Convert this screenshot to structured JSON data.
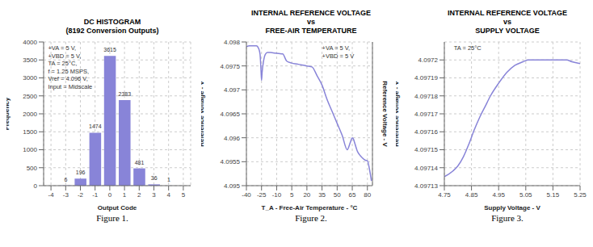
{
  "chart_data": [
    {
      "type": "bar",
      "title": "DC HISTOGRAM\n(8192 Conversion Outputs)",
      "x_label": "Output Code",
      "y_label": "Frequency",
      "x": [
        -4,
        -3,
        -2,
        -1,
        0,
        1,
        2,
        3,
        4,
        5
      ],
      "values": [
        0,
        6,
        196,
        1474,
        3615,
        2383,
        481,
        36,
        1,
        0
      ],
      "xlim": [
        -4.5,
        5.5
      ],
      "xticks": [
        -4,
        -3,
        -2,
        -1,
        0,
        1,
        2,
        3,
        4,
        5
      ],
      "ylim": [
        0,
        4000
      ],
      "yticks": [
        0,
        500,
        1000,
        1500,
        2000,
        2500,
        3000,
        3500,
        4000
      ],
      "grid": true,
      "data_labels": true,
      "annotation": "+VA = 5 V,\n+VBD = 5 V,\nTA = 25°C,\nf = 1.25 MSPS,\nVref = 4.096 V,\nInput = Midscale",
      "caption": "Figure 1."
    },
    {
      "type": "line",
      "title": "INTERNAL REFERENCE VOLTAGE\nvs\nFREE-AIR TEMPERATURE",
      "x_label": "T_A - Free-Air Temperature - °C",
      "y_label": "Reference Voltage - V",
      "y2_label": "Reference Voltage - V",
      "x": [
        -40,
        -37,
        -35,
        -30,
        -28,
        -26.5,
        -25.5,
        -25,
        -24.5,
        -23,
        -21,
        -19,
        -16,
        -12,
        -8,
        -4,
        0,
        5,
        10,
        15,
        20,
        25,
        30,
        35,
        40,
        45,
        50,
        55,
        60,
        63,
        65,
        66,
        67,
        68,
        70,
        72,
        75,
        78,
        80,
        82,
        84
      ],
      "values": [
        4.0979,
        4.09792,
        4.09792,
        4.09792,
        4.09787,
        4.09775,
        4.0974,
        4.0972,
        4.09735,
        4.0976,
        4.09775,
        4.09778,
        4.09778,
        4.09777,
        4.09776,
        4.09775,
        4.0976,
        4.09756,
        4.09754,
        4.09752,
        4.0975,
        4.09748,
        4.0973,
        4.0971,
        4.0968,
        4.09655,
        4.0963,
        4.09605,
        4.09575,
        4.0959,
        4.096,
        4.09598,
        4.09592,
        4.09585,
        4.09572,
        4.09565,
        4.09558,
        4.09553,
        4.09552,
        4.09535,
        4.0951
      ],
      "xlim": [
        -40,
        85
      ],
      "xticks": [
        -40,
        -25,
        -10,
        5,
        20,
        35,
        50,
        65,
        80
      ],
      "ylim": [
        4.095,
        4.098
      ],
      "yticks": [
        4.095,
        4.0955,
        4.096,
        4.0965,
        4.097,
        4.0975,
        4.098
      ],
      "grid": true,
      "annotation": "+VA = 5 V,\n+VBD = 5 V",
      "caption": "Figure 2."
    },
    {
      "type": "line",
      "title": "INTERNAL REFERENCE VOLTAGE\nvs\nSUPPLY VOLTAGE",
      "x_label": "Supply Voltage - V",
      "y_label": "Reference Voltage - V",
      "x": [
        4.75,
        4.78,
        4.8,
        4.82,
        4.84,
        4.86,
        4.88,
        4.9,
        4.92,
        4.95,
        4.98,
        5.01,
        5.04,
        5.06,
        5.08,
        5.1,
        5.12,
        5.15,
        5.18,
        5.2,
        5.22,
        5.25
      ],
      "values": [
        4.097135,
        4.097138,
        4.097141,
        4.097146,
        4.097153,
        4.097161,
        4.097168,
        4.097174,
        4.09718,
        4.097187,
        4.097193,
        4.097197,
        4.097199,
        4.0972,
        4.0972,
        4.0972,
        4.0972,
        4.0972,
        4.0972,
        4.0972,
        4.097199,
        4.097198
      ],
      "xlim": [
        4.75,
        5.25
      ],
      "xticks": [
        4.75,
        4.85,
        4.95,
        5.05,
        5.15,
        5.25
      ],
      "ylim": [
        4.09713,
        4.09721
      ],
      "yticks": [
        4.09713,
        4.09714,
        4.09715,
        4.09716,
        4.09717,
        4.09718,
        4.09719,
        4.0972
      ],
      "grid": true,
      "annotation": "TA = 25°C",
      "caption": "Figure 3."
    }
  ]
}
